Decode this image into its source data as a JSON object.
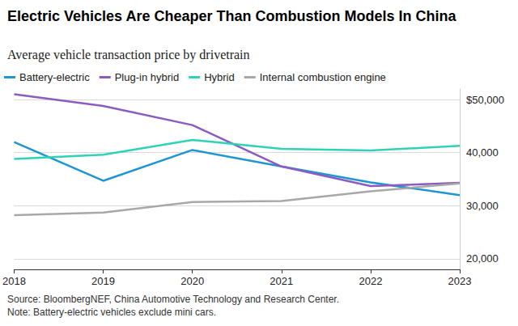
{
  "chart_data": {
    "type": "line",
    "title": "Electric Vehicles Are Cheaper Than Combustion Models In China",
    "subtitle": "Average vehicle transaction price by drivetrain",
    "source": "Source: BloombergNEF, China Automotive Technology and Research Center.",
    "note": "Note: Battery-electric vehicles exclude mini cars.",
    "categories": [
      "2018",
      "2019",
      "2020",
      "2021",
      "2022",
      "2023"
    ],
    "series": [
      {
        "name": "Battery-electric",
        "color": "#1e95d4",
        "values": [
          42000,
          34700,
          40500,
          37400,
          34400,
          32000
        ]
      },
      {
        "name": "Plug-in hybrid",
        "color": "#8a5cc2",
        "values": [
          51000,
          48800,
          45200,
          37400,
          33700,
          34300
        ]
      },
      {
        "name": "Hybrid",
        "color": "#2ed3b5",
        "values": [
          38800,
          39600,
          42400,
          40700,
          40400,
          41300
        ]
      },
      {
        "name": "Internal combustion engine",
        "color": "#a8a8a8",
        "values": [
          28200,
          28700,
          30700,
          30900,
          32700,
          34200
        ]
      }
    ],
    "ylim": [
      18000,
      52000
    ],
    "yticks": [
      {
        "value": 20000,
        "label": "20,000"
      },
      {
        "value": 30000,
        "label": "30,000"
      },
      {
        "value": 40000,
        "label": "40,000"
      },
      {
        "value": 50000,
        "label": "$50,000"
      }
    ],
    "grid": true,
    "legend": "top-left"
  }
}
